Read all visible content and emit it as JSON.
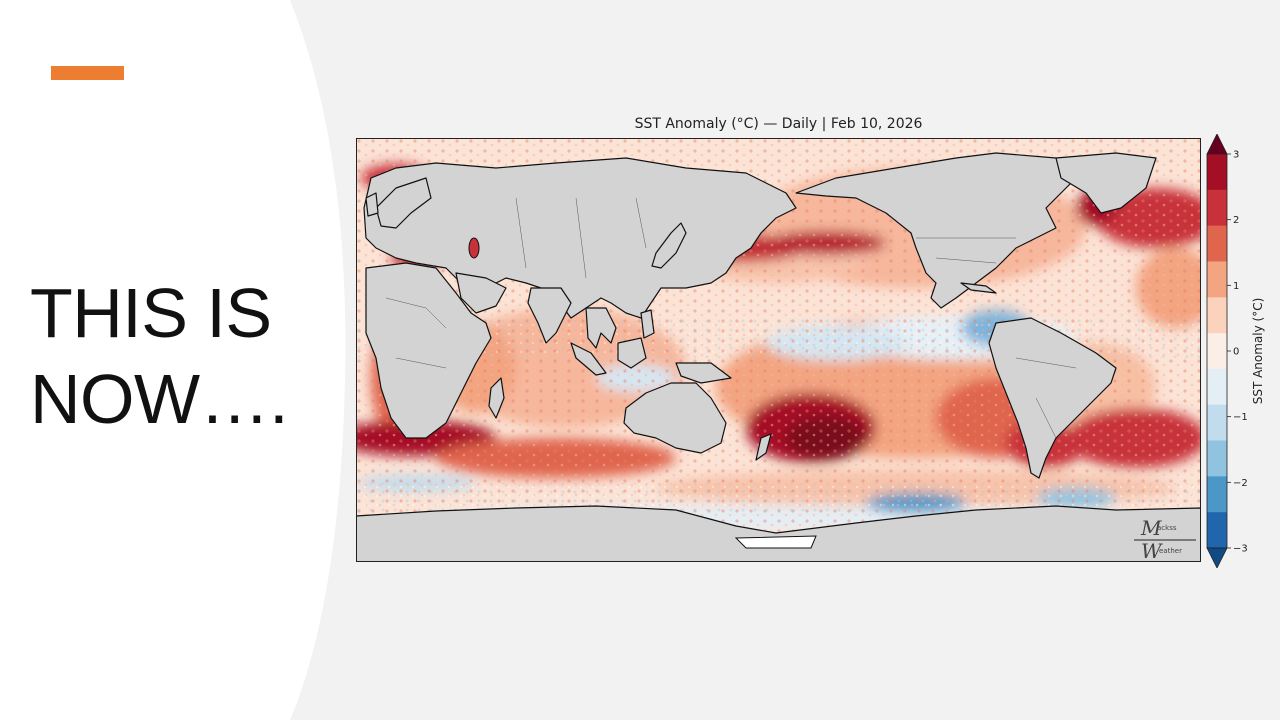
{
  "slide": {
    "headline_lines": [
      "THIS IS",
      "NOW…."
    ],
    "accent_color": "#ed7d31"
  },
  "map": {
    "title": "SST Anomaly (°C) — Daily | Feb 10, 2026",
    "projection": "Plate Carree, Pacific-centered",
    "land_color": "#d3d3d3",
    "colorbar": {
      "label": "SST Anomaly (°C)",
      "ticks": [
        "3",
        "2",
        "1",
        "0",
        "−1",
        "−2",
        "−3"
      ],
      "colors": [
        "#67001f",
        "#a50f25",
        "#c8303a",
        "#e0654d",
        "#f3a481",
        "#fbd2bb",
        "#fbeee6",
        "#e4eef5",
        "#c1dced",
        "#90c3df",
        "#4b97c8",
        "#2166ac",
        "#0f4b87"
      ]
    },
    "watermark": {
      "line1_big": "M",
      "line1_small": "ackss",
      "line2_big": "W",
      "line2_small": "eather"
    }
  }
}
